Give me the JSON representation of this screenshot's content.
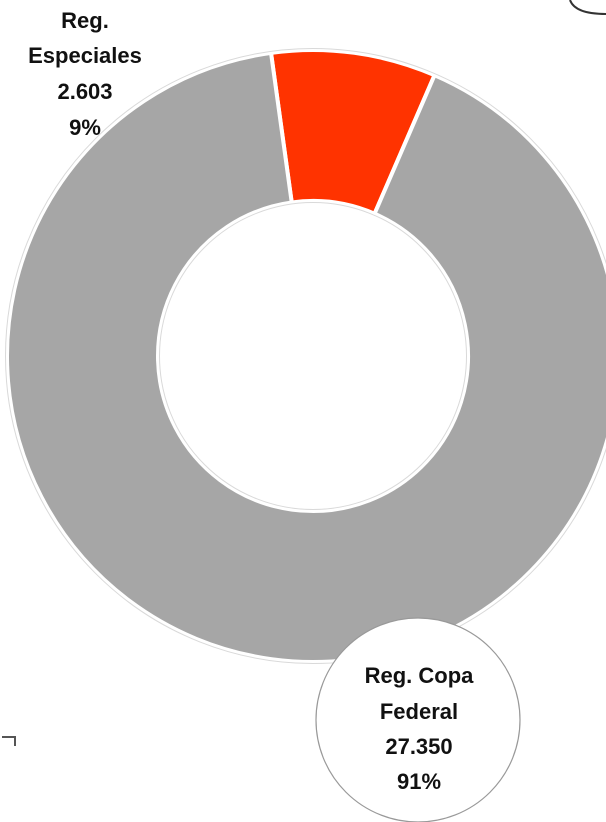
{
  "chart_data": {
    "type": "pie",
    "donut": true,
    "slices": [
      {
        "label_lines": [
          "Reg.",
          "Especiales"
        ],
        "value_text": "2.603",
        "value": 2603,
        "percent_text": "9%",
        "percent": 9,
        "color": "#FF3300"
      },
      {
        "label_lines": [
          "Reg. Copa",
          "Federal"
        ],
        "value_text": "27.350",
        "value": 27350,
        "percent_text": "91%",
        "percent": 91,
        "color": "#A6A6A6"
      }
    ],
    "legend": "none"
  }
}
